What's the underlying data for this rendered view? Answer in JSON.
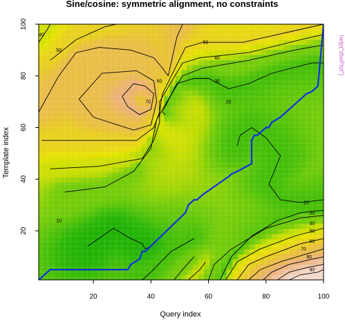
{
  "chart_data": {
    "type": "heatmap",
    "subtype": "dtw-cost-contour-with-warping-path",
    "title": "Sine/cosine: symmetric  alignment, no constraints",
    "xlabel": "Query index",
    "ylabel": "Template index",
    "side_text": "help(\"dtwPlot\")",
    "xlim": [
      1,
      100
    ],
    "ylim": [
      1,
      100
    ],
    "xticks": [
      20,
      40,
      60,
      80,
      100
    ],
    "yticks": [
      20,
      40,
      60,
      80,
      100
    ],
    "xtick_labels": [
      "20",
      "40",
      "60",
      "80",
      "100"
    ],
    "ytick_labels": [
      "20",
      "40",
      "60",
      "80",
      "100"
    ],
    "grid": true,
    "colormap": "terrain (green-yellow-tan-white)",
    "colors": {
      "path": "#1030e0",
      "contour": "#000000",
      "side_text": "#cc66cc"
    },
    "contours": [
      {
        "label": "10",
        "points": [
          [
            18,
            14
          ],
          [
            27,
            21
          ],
          [
            33,
            17
          ],
          [
            37,
            15
          ],
          [
            38,
            13
          ],
          [
            40,
            14
          ]
        ]
      },
      {
        "label": "20",
        "points": [
          [
            70,
            53
          ],
          [
            71,
            57
          ],
          [
            75,
            60
          ],
          [
            80,
            56
          ],
          [
            85,
            49
          ],
          [
            81,
            38
          ],
          [
            85,
            32
          ],
          [
            92,
            31
          ],
          [
            100,
            32
          ]
        ]
      },
      {
        "label": "20",
        "points": [
          [
            45,
            65
          ],
          [
            44,
            66
          ],
          [
            49,
            77
          ],
          [
            55,
            79
          ],
          [
            60,
            79
          ],
          [
            67,
            75
          ],
          [
            74,
            77
          ],
          [
            82,
            81
          ],
          [
            96,
            85
          ],
          [
            100,
            85
          ]
        ]
      },
      {
        "label": "30",
        "points": [
          [
            10,
            35
          ],
          [
            24,
            37
          ],
          [
            34,
            43
          ],
          [
            40,
            52
          ],
          [
            42,
            63
          ],
          [
            44,
            67
          ],
          [
            51,
            80
          ],
          [
            58,
            83
          ],
          [
            74,
            86
          ],
          [
            90,
            90
          ],
          [
            100,
            92
          ]
        ]
      },
      {
        "label": "40",
        "points": [
          [
            5,
            44
          ],
          [
            22,
            45
          ],
          [
            37,
            48
          ],
          [
            41,
            55
          ],
          [
            43,
            62
          ],
          [
            43,
            70
          ],
          [
            51,
            85
          ],
          [
            57,
            87
          ],
          [
            74,
            89
          ],
          [
            92,
            94
          ],
          [
            100,
            96
          ]
        ]
      },
      {
        "label": "50",
        "points": [
          [
            2,
            55
          ],
          [
            21,
            55
          ],
          [
            35,
            55
          ],
          [
            41,
            60
          ],
          [
            43,
            66
          ],
          [
            44,
            73
          ],
          [
            52,
            91
          ],
          [
            58,
            93
          ],
          [
            72,
            93
          ],
          [
            92,
            98
          ],
          [
            100,
            100
          ]
        ]
      },
      {
        "label": "60",
        "points": [
          [
            15,
            71
          ],
          [
            23,
            81
          ],
          [
            35,
            82
          ],
          [
            41,
            78
          ],
          [
            42,
            70
          ],
          [
            40,
            61
          ],
          [
            34,
            59
          ],
          [
            20,
            64
          ],
          [
            15,
            71
          ]
        ]
      },
      {
        "label": "70",
        "points": [
          [
            30,
            72
          ],
          [
            34,
            77
          ],
          [
            38,
            76
          ],
          [
            41,
            73
          ],
          [
            40,
            67
          ],
          [
            36,
            65
          ],
          [
            32,
            68
          ],
          [
            30,
            72
          ]
        ]
      },
      {
        "label": "60",
        "points": [
          [
            1,
            66
          ],
          [
            8,
            80
          ],
          [
            14,
            89
          ],
          [
            22,
            91
          ],
          [
            33,
            90
          ],
          [
            41,
            87
          ],
          [
            44,
            83
          ],
          [
            46,
            80
          ],
          [
            49,
            95
          ],
          [
            51,
            100
          ]
        ]
      },
      {
        "label": "50",
        "points": [
          [
            5,
            86
          ],
          [
            14,
            94
          ],
          [
            24,
            99
          ],
          [
            28,
            100
          ]
        ]
      },
      {
        "label": "40",
        "points": [
          [
            1,
            93
          ],
          [
            4,
            98
          ],
          [
            5,
            100
          ]
        ]
      },
      {
        "label": "20",
        "points": [
          [
            64,
            1
          ],
          [
            68,
            10
          ],
          [
            75,
            18
          ],
          [
            84,
            24
          ],
          [
            92,
            27
          ],
          [
            100,
            28
          ]
        ]
      },
      {
        "label": "30",
        "points": [
          [
            60,
            1
          ],
          [
            62,
            7
          ],
          [
            68,
            13
          ],
          [
            80,
            21
          ],
          [
            92,
            25
          ],
          [
            100,
            26
          ]
        ]
      },
      {
        "label": "40",
        "points": [
          [
            66,
            1
          ],
          [
            70,
            8
          ],
          [
            78,
            13
          ],
          [
            90,
            18
          ],
          [
            100,
            21
          ]
        ]
      },
      {
        "label": "50",
        "points": [
          [
            70,
            1
          ],
          [
            74,
            7
          ],
          [
            80,
            10
          ],
          [
            92,
            15
          ],
          [
            100,
            17
          ]
        ]
      },
      {
        "label": "60",
        "points": [
          [
            74,
            1
          ],
          [
            78,
            5
          ],
          [
            85,
            8
          ],
          [
            94,
            11
          ],
          [
            100,
            13
          ]
        ]
      },
      {
        "label": "70",
        "points": [
          [
            79,
            1
          ],
          [
            82,
            4
          ],
          [
            88,
            7
          ],
          [
            96,
            9
          ],
          [
            100,
            10
          ]
        ]
      },
      {
        "label": "80",
        "points": [
          [
            84,
            1
          ],
          [
            88,
            4
          ],
          [
            95,
            6
          ],
          [
            100,
            7
          ]
        ]
      },
      {
        "label": "90",
        "points": [
          [
            88,
            1
          ],
          [
            92,
            3
          ],
          [
            98,
            4
          ],
          [
            100,
            5
          ]
        ]
      },
      {
        "label": "20",
        "points": [
          [
            37,
            1
          ],
          [
            40,
            4
          ],
          [
            47,
            12
          ],
          [
            55,
            17
          ]
        ]
      },
      {
        "label": "30",
        "points": [
          [
            48,
            1
          ],
          [
            51,
            5
          ],
          [
            55,
            10
          ]
        ]
      },
      {
        "label": "40",
        "points": [
          [
            53,
            1
          ],
          [
            57,
            5
          ],
          [
            59,
            8
          ]
        ]
      }
    ],
    "contour_labels": [
      {
        "text": "10",
        "x": 8,
        "y": 24
      },
      {
        "text": "20",
        "x": 94,
        "y": 31
      },
      {
        "text": "30",
        "x": 96,
        "y": 27
      },
      {
        "text": "40",
        "x": 96,
        "y": 23
      },
      {
        "text": "50",
        "x": 96,
        "y": 20
      },
      {
        "text": "60",
        "x": 96,
        "y": 16
      },
      {
        "text": "70",
        "x": 93,
        "y": 13
      },
      {
        "text": "80",
        "x": 95,
        "y": 10
      },
      {
        "text": "90",
        "x": 96,
        "y": 5
      },
      {
        "text": "20",
        "x": 67,
        "y": 70
      },
      {
        "text": "30",
        "x": 63,
        "y": 78
      },
      {
        "text": "40",
        "x": 63,
        "y": 87
      },
      {
        "text": "50",
        "x": 59,
        "y": 93
      },
      {
        "text": "60",
        "x": 43,
        "y": 78
      },
      {
        "text": "70",
        "x": 39,
        "y": 70
      },
      {
        "text": "50",
        "x": 8,
        "y": 90
      },
      {
        "text": "40",
        "x": 2,
        "y": 96
      }
    ],
    "series": [
      {
        "name": "",
        "type": "step",
        "x": [
          1,
          5,
          32,
          33,
          36,
          37,
          38,
          52,
          53,
          55,
          56,
          58,
          67,
          68,
          70,
          75,
          75,
          76,
          77,
          79,
          80,
          81,
          82,
          85,
          87,
          88,
          90,
          92,
          94,
          96,
          98,
          100
        ],
        "y": [
          1,
          5,
          5,
          7,
          9,
          12,
          12,
          27,
          30,
          32,
          32,
          34,
          41,
          42,
          43,
          46,
          55,
          57,
          57,
          59,
          60,
          60,
          62,
          64,
          66,
          67,
          69,
          71,
          73,
          74,
          76,
          100
        ]
      }
    ]
  }
}
